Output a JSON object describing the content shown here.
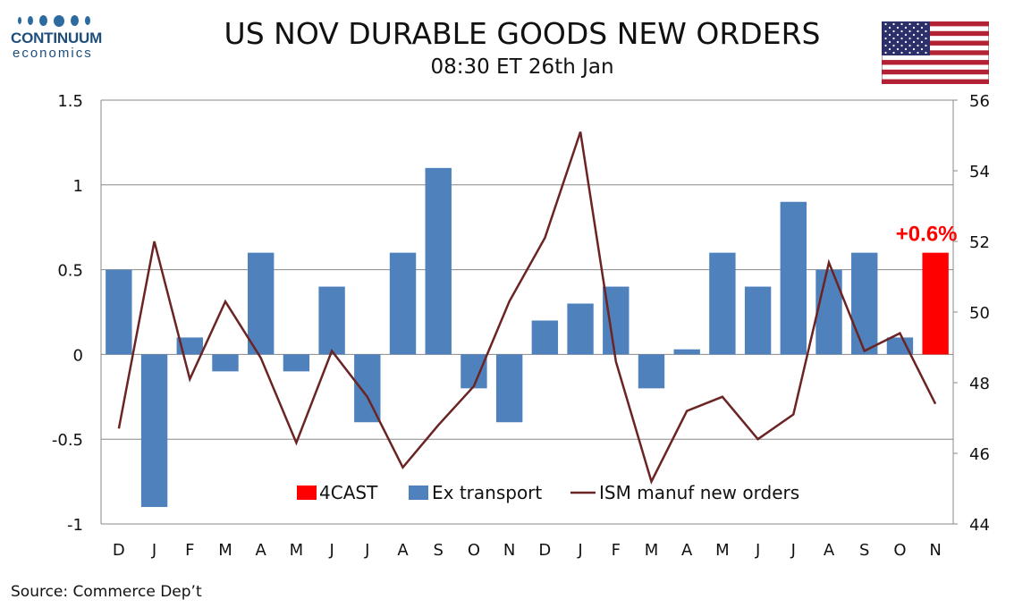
{
  "logo": {
    "name": "CONTINUUM",
    "sub": "economics"
  },
  "header": {
    "title": "US NOV DURABLE GOODS NEW ORDERS",
    "subtitle": "08:30 ET 26th Jan"
  },
  "flag_icon": "us-flag-icon",
  "source": "Source: Commerce Dep’t",
  "colors": {
    "bars": "#4f81bd",
    "forecast": "#ff0000",
    "line": "#6b2424",
    "grid": "#888888"
  },
  "chart_data": {
    "type": "bar",
    "categories": [
      "D",
      "J",
      "F",
      "M",
      "A",
      "M",
      "J",
      "J",
      "A",
      "S",
      "O",
      "N",
      "D",
      "J",
      "F",
      "M",
      "A",
      "M",
      "J",
      "J",
      "A",
      "S",
      "O",
      "N"
    ],
    "series": [
      {
        "name": "Ex transport",
        "axis": "left",
        "type": "bar",
        "values": [
          0.5,
          -0.9,
          0.1,
          -0.1,
          0.6,
          -0.1,
          0.4,
          -0.4,
          0.6,
          1.1,
          -0.2,
          -0.4,
          0.2,
          0.3,
          0.4,
          -0.2,
          0.03,
          0.6,
          0.4,
          0.9,
          0.5,
          0.6,
          0.1,
          null
        ]
      },
      {
        "name": "4CAST",
        "axis": "left",
        "type": "bar",
        "values": [
          null,
          null,
          null,
          null,
          null,
          null,
          null,
          null,
          null,
          null,
          null,
          null,
          null,
          null,
          null,
          null,
          null,
          null,
          null,
          null,
          null,
          null,
          null,
          0.6
        ]
      },
      {
        "name": "ISM manuf new orders",
        "axis": "right",
        "type": "line",
        "values": [
          46.7,
          52.0,
          48.1,
          50.3,
          48.7,
          46.3,
          48.9,
          47.6,
          45.6,
          46.8,
          47.9,
          50.3,
          52.1,
          55.1,
          48.6,
          45.2,
          47.2,
          47.6,
          46.4,
          47.1,
          51.4,
          48.9,
          49.4,
          47.4
        ]
      }
    ],
    "y_left": {
      "ticks": [
        "1.5",
        "1",
        "0.5",
        "0",
        "-0.5",
        "-1"
      ],
      "lim": [
        -1,
        1.5
      ]
    },
    "y_right": {
      "ticks": [
        "56",
        "54",
        "52",
        "50",
        "48",
        "46",
        "44"
      ],
      "lim": [
        44,
        56
      ]
    },
    "annotation": "+0.6%",
    "legend": {
      "placement": "bottom-center",
      "items": [
        "4CAST",
        "Ex transport",
        "ISM manuf new orders"
      ]
    },
    "grid": "horizontal"
  }
}
